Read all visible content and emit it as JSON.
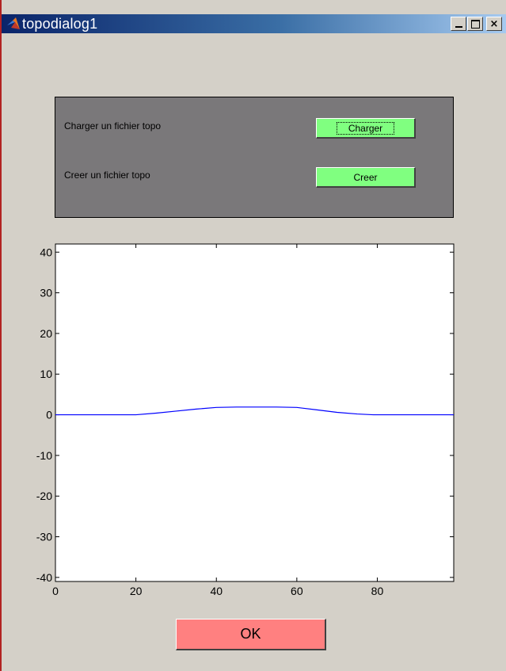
{
  "window": {
    "title": "topodialog1",
    "controls": {
      "minimize": "_",
      "maximize": "□",
      "close": "×"
    }
  },
  "panel": {
    "charger_label": "Charger un fichier topo",
    "charger_button": "Charger",
    "creer_label": "Creer un fichier topo",
    "creer_button": "Creer"
  },
  "ok_button": "OK",
  "colors": {
    "panel_bg": "#7a787a",
    "green_button": "#80ff80",
    "ok_button": "#ff8080",
    "line": "#0000ff"
  },
  "chart_data": {
    "type": "line",
    "title": "",
    "xlabel": "",
    "ylabel": "",
    "xlim": [
      0,
      99
    ],
    "ylim": [
      -41,
      42
    ],
    "xticks": [
      0,
      20,
      40,
      60,
      80
    ],
    "yticks": [
      40,
      30,
      20,
      10,
      0,
      -10,
      -20,
      -30,
      -40
    ],
    "grid": false,
    "series": [
      {
        "x": [
          0,
          20,
          25,
          30,
          35,
          40,
          45,
          50,
          55,
          60,
          65,
          70,
          75,
          79,
          99
        ],
        "y": [
          0,
          0,
          0.4,
          0.9,
          1.4,
          1.8,
          1.9,
          1.9,
          1.9,
          1.8,
          1.2,
          0.6,
          0.2,
          0,
          0
        ]
      }
    ]
  }
}
